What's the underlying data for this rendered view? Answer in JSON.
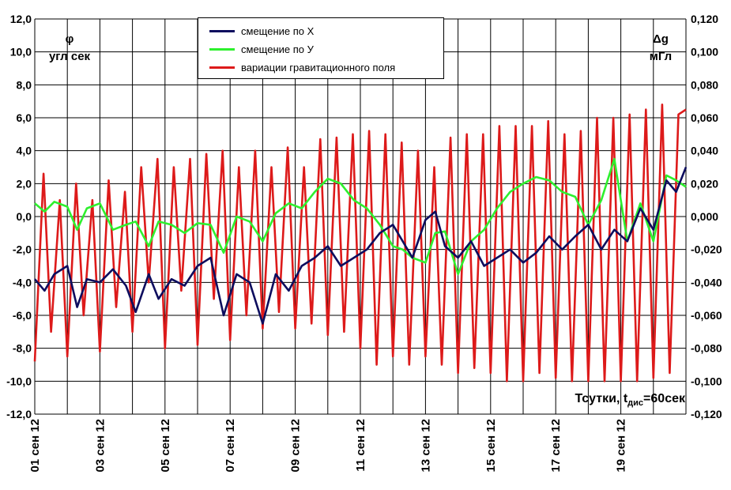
{
  "chart_data": {
    "type": "line",
    "left_axis": {
      "symbol": "φ",
      "unit": "угл сек",
      "range": [
        -12.0,
        12.0
      ],
      "ticks": [
        "12,0",
        "10,0",
        "8,0",
        "6,0",
        "4,0",
        "2,0",
        "0,0",
        "-2,0",
        "-4,0",
        "-6,0",
        "-8,0",
        "-10,0",
        "-12,0"
      ]
    },
    "right_axis": {
      "symbol": "Δg",
      "unit": "мГл",
      "range": [
        -0.12,
        0.12
      ],
      "ticks": [
        "0,120",
        "0,100",
        "0,080",
        "0,060",
        "0,040",
        "0,020",
        "0,000",
        "-0,020",
        "-0,040",
        "-0,060",
        "-0,080",
        "-0,100",
        "-0,120"
      ]
    },
    "x_axis": {
      "range_days": [
        1,
        21
      ],
      "tick_labels": [
        "01 сен 12",
        "03 сен 12",
        "05 сен 12",
        "07 сен 12",
        "09 сен 12",
        "11 сен 12",
        "13 сен 12",
        "15 сен 12",
        "17 сен 12",
        "19 сен 12"
      ],
      "note_prefix": "Тсутки, t",
      "note_sub": "дис",
      "note_suffix": "=60сек"
    },
    "grid": true,
    "legend_position": "top-center",
    "series": [
      {
        "name": "смещение по Х",
        "color": "#0d0d5e",
        "axis": "left",
        "x": [
          1,
          1.3,
          1.6,
          2,
          2.3,
          2.6,
          3,
          3.4,
          3.8,
          4.1,
          4.5,
          4.8,
          5.2,
          5.6,
          6,
          6.4,
          6.8,
          7.2,
          7.6,
          8,
          8.4,
          8.8,
          9.2,
          9.6,
          10,
          10.4,
          10.8,
          11.2,
          11.6,
          12,
          12.3,
          12.6,
          13,
          13.3,
          13.6,
          14,
          14.4,
          14.8,
          15.2,
          15.6,
          16,
          16.4,
          16.8,
          17.2,
          17.6,
          18,
          18.4,
          18.8,
          19.2,
          19.6,
          20,
          20.4,
          20.7,
          21
        ],
        "y": [
          -3.8,
          -4.5,
          -3.5,
          -3.0,
          -5.5,
          -3.8,
          -4.0,
          -3.2,
          -4.2,
          -5.8,
          -3.5,
          -5.0,
          -3.8,
          -4.2,
          -3.0,
          -2.5,
          -6.0,
          -3.5,
          -4.0,
          -6.5,
          -3.5,
          -4.5,
          -3.0,
          -2.5,
          -1.8,
          -3.0,
          -2.5,
          -2.0,
          -1.0,
          -0.5,
          -1.5,
          -2.5,
          -0.2,
          0.3,
          -1.8,
          -2.5,
          -1.5,
          -3.0,
          -2.5,
          -2.0,
          -2.8,
          -2.2,
          -1.2,
          -2.0,
          -1.2,
          -0.5,
          -2.0,
          -0.8,
          -1.5,
          0.5,
          -0.8,
          2.2,
          1.5,
          3.0
        ]
      },
      {
        "name": "смещение по У",
        "color": "#2ef02e",
        "axis": "left",
        "x": [
          1,
          1.3,
          1.6,
          2,
          2.3,
          2.6,
          3,
          3.4,
          3.8,
          4.1,
          4.5,
          4.8,
          5.2,
          5.6,
          6,
          6.4,
          6.8,
          7.2,
          7.6,
          8,
          8.4,
          8.8,
          9.2,
          9.6,
          10,
          10.4,
          10.8,
          11.2,
          11.6,
          12,
          12.3,
          12.6,
          13,
          13.3,
          13.6,
          14,
          14.4,
          14.8,
          15.2,
          15.6,
          16,
          16.4,
          16.8,
          17.2,
          17.6,
          18,
          18.4,
          18.8,
          19.2,
          19.6,
          20,
          20.4,
          20.7,
          21
        ],
        "y": [
          0.8,
          0.3,
          0.9,
          0.6,
          -0.8,
          0.5,
          0.8,
          -0.8,
          -0.5,
          -0.3,
          -1.8,
          -0.3,
          -0.5,
          -1.0,
          -0.4,
          -0.5,
          -2.2,
          0.0,
          -0.3,
          -1.5,
          0.2,
          0.8,
          0.5,
          1.5,
          2.3,
          2.0,
          1.0,
          0.5,
          -0.5,
          -1.8,
          -2.0,
          -2.5,
          -2.8,
          -1.0,
          -0.9,
          -3.5,
          -1.5,
          -0.8,
          0.5,
          1.5,
          2.0,
          2.4,
          2.2,
          1.5,
          1.2,
          -0.5,
          1.0,
          3.5,
          -1.5,
          0.8,
          -1.5,
          2.5,
          2.2,
          1.8
        ]
      },
      {
        "name": "вариации гравитационного поля",
        "color": "#dd1a1a",
        "axis": "right",
        "x": [
          1,
          1.27,
          1.5,
          1.77,
          2,
          2.27,
          2.5,
          2.77,
          3,
          3.27,
          3.5,
          3.77,
          4,
          4.27,
          4.5,
          4.77,
          5,
          5.27,
          5.5,
          5.77,
          6,
          6.27,
          6.5,
          6.77,
          7,
          7.27,
          7.5,
          7.77,
          8,
          8.27,
          8.5,
          8.77,
          9,
          9.27,
          9.5,
          9.77,
          10,
          10.27,
          10.5,
          10.77,
          11,
          11.27,
          11.5,
          11.77,
          12,
          12.27,
          12.5,
          12.77,
          13,
          13.27,
          13.5,
          13.77,
          14,
          14.27,
          14.5,
          14.77,
          15,
          15.27,
          15.5,
          15.77,
          16,
          16.27,
          16.5,
          16.77,
          17,
          17.27,
          17.5,
          17.77,
          18,
          18.27,
          18.5,
          18.77,
          19,
          19.27,
          19.5,
          19.77,
          20,
          20.27,
          20.5,
          20.77,
          21
        ],
        "y": [
          -0.088,
          0.026,
          -0.07,
          0.01,
          -0.085,
          0.02,
          -0.06,
          0.01,
          -0.082,
          0.022,
          -0.055,
          0.015,
          -0.07,
          0.03,
          -0.04,
          0.035,
          -0.08,
          0.03,
          -0.045,
          0.035,
          -0.078,
          0.038,
          -0.05,
          0.04,
          -0.075,
          0.03,
          -0.06,
          0.04,
          -0.068,
          0.03,
          -0.058,
          0.042,
          -0.068,
          0.03,
          -0.065,
          0.047,
          -0.072,
          0.048,
          -0.07,
          0.05,
          -0.08,
          0.052,
          -0.09,
          0.05,
          -0.085,
          0.045,
          -0.09,
          0.04,
          -0.085,
          0.03,
          -0.09,
          0.048,
          -0.095,
          0.05,
          -0.092,
          0.05,
          -0.095,
          0.055,
          -0.1,
          0.055,
          -0.1,
          0.055,
          -0.095,
          0.058,
          -0.098,
          0.05,
          -0.1,
          0.052,
          -0.1,
          0.06,
          -0.1,
          0.06,
          -0.1,
          0.062,
          -0.1,
          0.065,
          -0.098,
          0.068,
          -0.095,
          0.062,
          0.065
        ]
      }
    ]
  }
}
